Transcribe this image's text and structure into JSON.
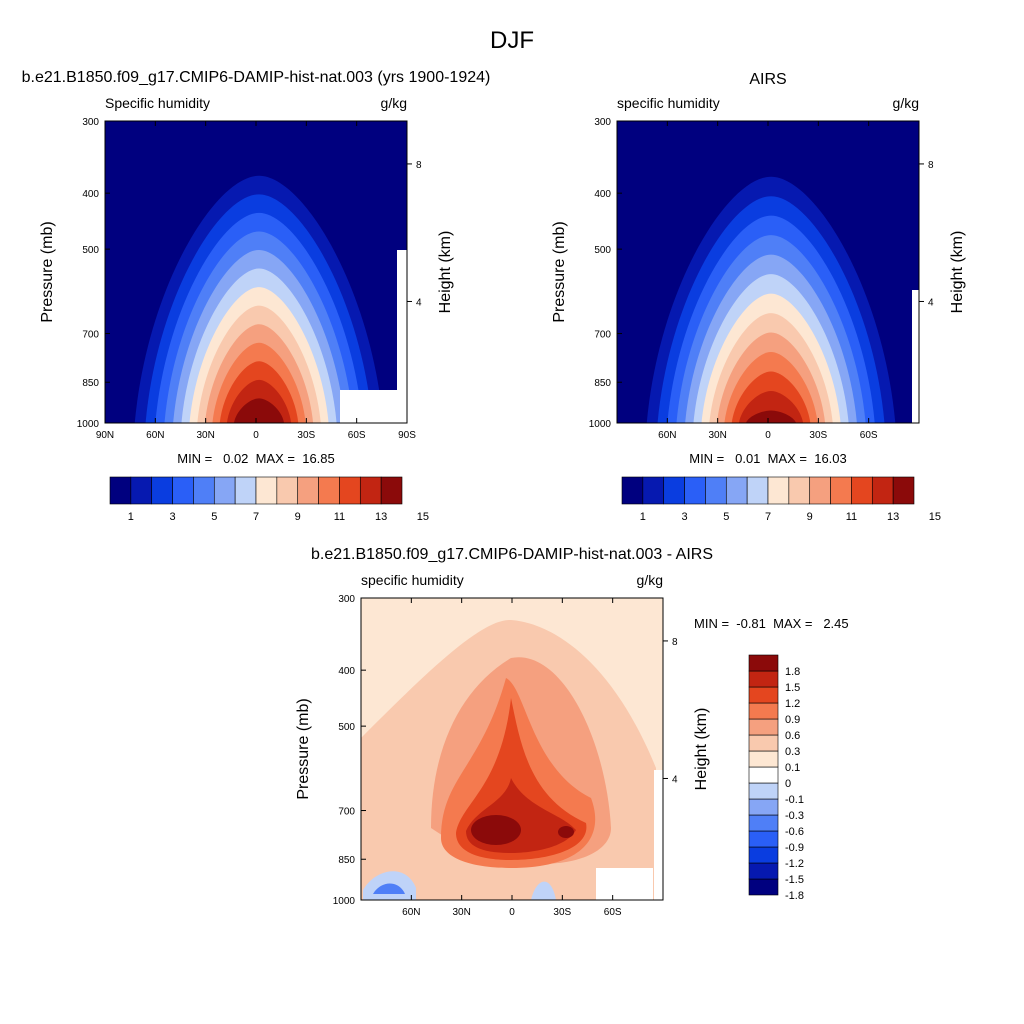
{
  "page": {
    "title": "DJF"
  },
  "colors": {
    "blue_red_14": [
      "#00007f",
      "#0619b0",
      "#0a3de0",
      "#2a5ff7",
      "#4f7ff7",
      "#86a6f5",
      "#bfd3f8",
      "#fde7d3",
      "#f9c9ae",
      "#f5a07f",
      "#f47a4f",
      "#e4461f",
      "#c22512",
      "#8b0a0a"
    ],
    "diff_levels": [
      "#00007f",
      "#0619b0",
      "#0a3de0",
      "#2a5ff7",
      "#4f7ff7",
      "#86a6f5",
      "#bfd3f8",
      "#ffffff",
      "#fde7d3",
      "#f9c9ae",
      "#f5a07f",
      "#f47a4f",
      "#e4461f",
      "#c22512",
      "#8b0a0a"
    ]
  },
  "chart_data": [
    {
      "type": "heatmap",
      "title": "b.e21.B1850.f09_g17.CMIP6-DAMIP-hist-nat.003 (yrs 1900-1924)",
      "left_title": "Specific humidity",
      "units": "g/kg",
      "xlabel": "",
      "ylabel": "Pressure (mb)",
      "y2label": "Height (km)",
      "x_ticks": [
        "90N",
        "60N",
        "30N",
        "0",
        "30S",
        "60S",
        "90S"
      ],
      "y_ticks": [
        300,
        400,
        500,
        700,
        850,
        1000
      ],
      "y2_ticks": [
        8,
        4
      ],
      "stats": "MIN =   0.02  MAX =  16.85",
      "colorbar_labels": [
        "1",
        "3",
        "5",
        "7",
        "9",
        "11",
        "13",
        "15"
      ],
      "max_value": 16.85,
      "min_value": 0.02
    },
    {
      "type": "heatmap",
      "title": "AIRS",
      "left_title": "specific humidity",
      "units": "g/kg",
      "xlabel": "",
      "ylabel": "Pressure (mb)",
      "y2label": "Height (km)",
      "x_ticks": [
        "60N",
        "30N",
        "0",
        "30S",
        "60S"
      ],
      "y_ticks": [
        300,
        400,
        500,
        700,
        850,
        1000
      ],
      "y2_ticks": [
        8,
        4
      ],
      "stats": "MIN =   0.01  MAX =  16.03",
      "colorbar_labels": [
        "1",
        "3",
        "5",
        "7",
        "9",
        "11",
        "13",
        "15"
      ],
      "max_value": 16.03,
      "min_value": 0.01
    },
    {
      "type": "heatmap",
      "title": "b.e21.B1850.f09_g17.CMIP6-DAMIP-hist-nat.003 - AIRS",
      "left_title": "specific humidity",
      "units": "g/kg",
      "xlabel": "",
      "ylabel": "Pressure (mb)",
      "y2label": "Height (km)",
      "x_ticks": [
        "60N",
        "30N",
        "0",
        "30S",
        "60S"
      ],
      "y_ticks": [
        300,
        400,
        500,
        700,
        850,
        1000
      ],
      "y2_ticks": [
        8,
        4
      ],
      "stats": "MIN =  -0.81  MAX =   2.45",
      "colorbar_labels": [
        "1.8",
        "1.5",
        "1.2",
        "0.9",
        "0.6",
        "0.3",
        "0.1",
        "0",
        "-0.1",
        "-0.3",
        "-0.6",
        "-0.9",
        "-1.2",
        "-1.5",
        "-1.8"
      ],
      "max_value": 2.45,
      "min_value": -0.81
    }
  ]
}
